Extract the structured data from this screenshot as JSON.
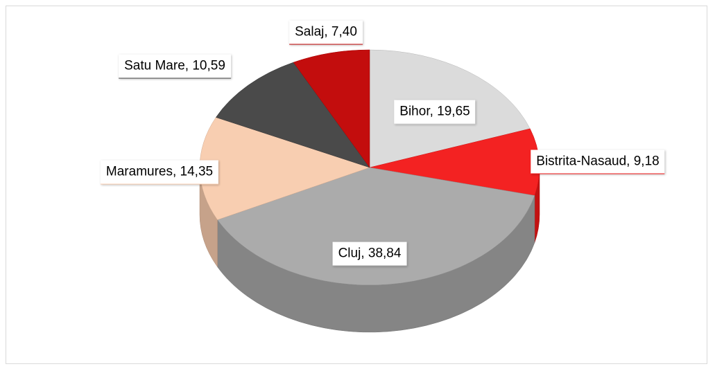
{
  "chart_data": {
    "type": "pie",
    "categories": [
      "Bihor",
      "Bistrita-Nasaud",
      "Cluj",
      "Maramures",
      "Satu Mare",
      "Salaj"
    ],
    "values": [
      19.65,
      9.18,
      38.84,
      14.35,
      10.59,
      7.4
    ],
    "value_labels": [
      "19,65",
      "9,18",
      "38,84",
      "14,35",
      "10,59",
      "7,40"
    ],
    "colors": [
      "#d9d9d9",
      "#f21616",
      "#a6a6a6",
      "#f8cbad",
      "#404040",
      "#c00000"
    ]
  }
}
